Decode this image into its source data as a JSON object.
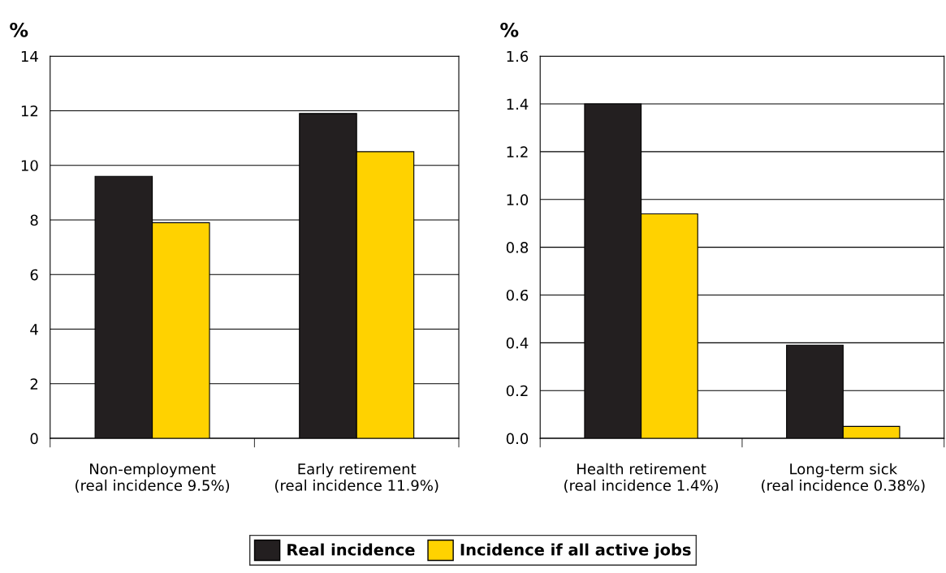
{
  "chart_data": [
    {
      "type": "bar",
      "ylabel": "%",
      "categories": [
        "Non-employment\n(real incidence 9.5%)",
        "Early retirement\n(real incidence 11.9%)"
      ],
      "series": [
        {
          "name": "Real incidence",
          "color": "#231f20",
          "values": [
            9.6,
            11.9
          ]
        },
        {
          "name": "Incidence if all active jobs",
          "color": "#ffd200",
          "values": [
            7.9,
            10.5
          ]
        }
      ],
      "ylim": [
        0,
        14
      ],
      "yticks": [
        0,
        2,
        4,
        6,
        8,
        10,
        12,
        14
      ],
      "grid": "y",
      "legend": "bottom"
    },
    {
      "type": "bar",
      "ylabel": "%",
      "categories": [
        "Health retirement\n(real incidence 1.4%)",
        "Long-term sick\n(real incidence 0.38%)"
      ],
      "series": [
        {
          "color": "#231f20",
          "values": [
            1.4,
            0.39
          ]
        },
        {
          "color": "#ffd200",
          "values": [
            0.94,
            0.05
          ]
        }
      ],
      "ylim": [
        0,
        1.6
      ],
      "yticks": [
        {
          "value": 0,
          "label": "0.0"
        },
        {
          "value": 0.2,
          "label": "0.2"
        },
        {
          "value": 0.4,
          "label": "0.4"
        },
        {
          "value": 0.6,
          "label": "0.6"
        },
        {
          "value": 0.8,
          "label": "0.8"
        },
        {
          "value": 1.0,
          "label": "1.0"
        },
        {
          "value": 1.2,
          "label": "1.2"
        },
        {
          "value": 1.4,
          "label": "1.4"
        },
        {
          "value": 1.6,
          "label": "1.6"
        }
      ],
      "grid": "y"
    }
  ]
}
